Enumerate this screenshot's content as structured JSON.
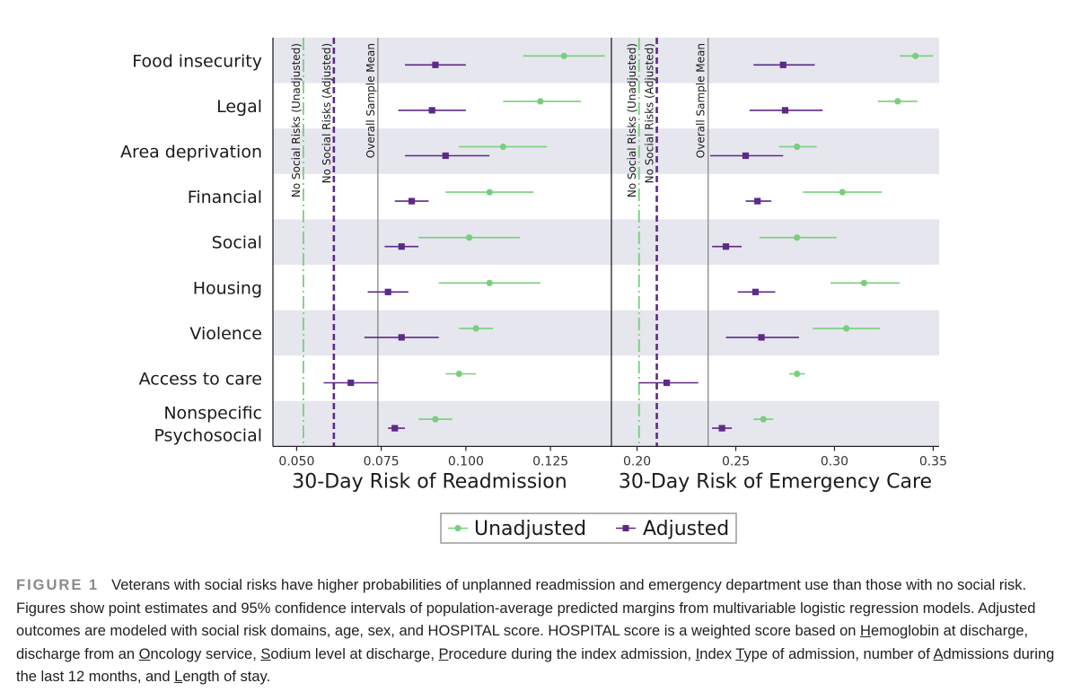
{
  "colors": {
    "unadjusted": "#77cf7c",
    "adjusted": "#5c2a86",
    "band": "#e6e6ee",
    "reference_line": "#888888"
  },
  "chart_data": [
    {
      "type": "dot-whisker",
      "xlabel": "30-Day Risk of Readmission",
      "xlim": [
        0.043,
        0.143
      ],
      "xticks": [
        0.05,
        0.075,
        0.1,
        0.125
      ],
      "xtick_labels": [
        "0.050",
        "0.075",
        "0.100",
        "0.125"
      ],
      "reference_lines": [
        {
          "label": "No Social Risks (Unadjusted)",
          "value": 0.052,
          "style": "dashdot",
          "series": "unadjusted"
        },
        {
          "label": "No Social Risks (Adjusted)",
          "value": 0.061,
          "style": "dashed",
          "series": "adjusted"
        },
        {
          "label": "Overall Sample Mean",
          "value": 0.074,
          "style": "solid",
          "series": "reference"
        }
      ],
      "categories": [
        "Food insecurity",
        "Legal",
        "Area deprivation",
        "Financial",
        "Social",
        "Housing",
        "Violence",
        "Access to care",
        "Nonspecific Psychosocial"
      ],
      "series": [
        {
          "name": "Unadjusted",
          "estimates": [
            0.129,
            0.122,
            0.111,
            0.107,
            0.101,
            0.107,
            0.103,
            0.098,
            0.091
          ],
          "ci_low": [
            0.117,
            0.111,
            0.098,
            0.094,
            0.086,
            0.092,
            0.098,
            0.094,
            0.086
          ],
          "ci_high": [
            0.141,
            0.134,
            0.124,
            0.12,
            0.116,
            0.122,
            0.108,
            0.103,
            0.096
          ]
        },
        {
          "name": "Adjusted",
          "estimates": [
            0.091,
            0.09,
            0.094,
            0.084,
            0.081,
            0.077,
            0.081,
            0.066,
            0.079
          ],
          "ci_low": [
            0.082,
            0.08,
            0.082,
            0.079,
            0.076,
            0.071,
            0.07,
            0.058,
            0.077
          ],
          "ci_high": [
            0.1,
            0.1,
            0.107,
            0.089,
            0.086,
            0.083,
            0.092,
            0.074,
            0.082
          ]
        }
      ]
    },
    {
      "type": "dot-whisker",
      "xlabel": "30-Day Risk of Emergency Care",
      "xlim": [
        0.187,
        0.353
      ],
      "xticks": [
        0.2,
        0.25,
        0.3,
        0.35
      ],
      "xtick_labels": [
        "0.20",
        "0.25",
        "0.30",
        "0.35"
      ],
      "reference_lines": [
        {
          "label": "No Social Risks (Unadjusted)",
          "value": 0.201,
          "style": "dashdot",
          "series": "unadjusted"
        },
        {
          "label": "No Social Risks (Adjusted)",
          "value": 0.21,
          "style": "dashed",
          "series": "adjusted"
        },
        {
          "label": "Overall Sample Mean",
          "value": 0.236,
          "style": "solid",
          "series": "reference"
        }
      ],
      "categories": [
        "Food insecurity",
        "Legal",
        "Area deprivation",
        "Financial",
        "Social",
        "Housing",
        "Violence",
        "Access to care",
        "Nonspecific Psychosocial"
      ],
      "series": [
        {
          "name": "Unadjusted",
          "estimates": [
            0.341,
            0.332,
            0.281,
            0.304,
            0.281,
            0.315,
            0.306,
            0.281,
            0.264
          ],
          "ci_low": [
            0.333,
            0.322,
            0.272,
            0.284,
            0.262,
            0.298,
            0.289,
            0.277,
            0.259
          ],
          "ci_high": [
            0.35,
            0.342,
            0.291,
            0.324,
            0.301,
            0.333,
            0.323,
            0.285,
            0.269
          ]
        },
        {
          "name": "Adjusted",
          "estimates": [
            0.274,
            0.275,
            0.255,
            0.261,
            0.245,
            0.26,
            0.263,
            0.215,
            0.243
          ],
          "ci_low": [
            0.259,
            0.257,
            0.237,
            0.255,
            0.238,
            0.251,
            0.245,
            0.201,
            0.238
          ],
          "ci_high": [
            0.29,
            0.294,
            0.274,
            0.268,
            0.253,
            0.27,
            0.282,
            0.231,
            0.248
          ]
        }
      ]
    }
  ],
  "category_lines": [
    [
      "Food insecurity"
    ],
    [
      "Legal"
    ],
    [
      "Area deprivation"
    ],
    [
      "Financial"
    ],
    [
      "Social"
    ],
    [
      "Housing"
    ],
    [
      "Violence"
    ],
    [
      "Access to care"
    ],
    [
      "Nonspecific",
      "Psychosocial"
    ]
  ],
  "legend": {
    "unadjusted": "Unadjusted",
    "adjusted": "Adjusted"
  },
  "caption": {
    "label": "FIGURE 1",
    "part1": "Veterans with social risks have higher probabilities of unplanned readmission and emergency department use than those with no social risk. Figures show point estimates and 95% confidence intervals of population-average predicted margins from multivariable logistic regression models. Adjusted outcomes are modeled with social risk domains, age, sex, and HOSPITAL score. HOSPITAL score is a weighted score based on ",
    "h_letter": "H",
    "part2": "emoglobin at discharge, discharge from an ",
    "o_letter": "O",
    "part3": "ncology service, ",
    "s_letter": "S",
    "part4": "odium level at discharge, ",
    "p_letter": "P",
    "part5": "rocedure during the index admission, ",
    "i_letter": "I",
    "part6": "ndex ",
    "t_letter": "T",
    "part7": "ype of admission, number of ",
    "a_letter": "A",
    "part8": "dmissions during the last 12 months, and ",
    "l_letter": "L",
    "part9": "ength of stay."
  }
}
